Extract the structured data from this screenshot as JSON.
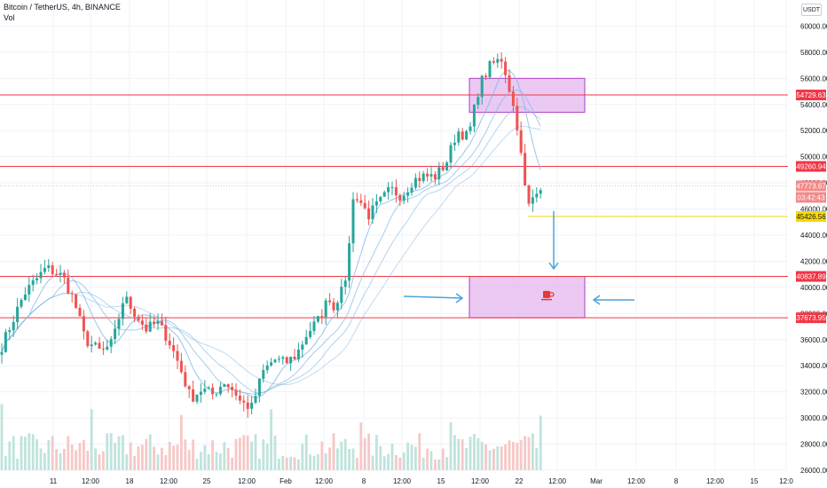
{
  "header": {
    "title": "Bitcoin / TetherUS, 4h, BINANCE",
    "volume_label": "Vol",
    "currency": "USDT"
  },
  "colors": {
    "up": "#26a69a",
    "down": "#ef5350",
    "ma": "#7fb8e6",
    "level_line": "#f23645",
    "current_price": "#f28a8a",
    "yellow_line": "#f5d90a",
    "zone_fill": "#e4b7ef",
    "zone_border": "#ad3ec3",
    "arrow": "#4aa3df",
    "volume_up": "#bfe3dd",
    "volume_down": "#f6c8c6"
  },
  "chart_data": {
    "type": "candlestick",
    "ylim": [
      26000,
      62000
    ],
    "y_ticks": [
      60000,
      58000,
      56000,
      54000,
      52000,
      50000,
      48000,
      46000,
      44000,
      42000,
      40000,
      38000,
      36000,
      34000,
      32000,
      30000,
      28000,
      26000
    ],
    "y_tick_labels": [
      "60000.00",
      "58000.00",
      "56000.00",
      "54000.00",
      "52000.00",
      "50000.00",
      "48000.00",
      "46000.00",
      "44000.00",
      "42000.00",
      "40000.00",
      "38000.00",
      "36000.00",
      "34000.00",
      "32000.00",
      "30000.00",
      "28000.00",
      "26000.00"
    ],
    "x_tick_labels": [
      "11",
      "12:00",
      "18",
      "12:00",
      "25",
      "12:00",
      "Feb",
      "12:00",
      "8",
      "12:00",
      "15",
      "12:00",
      "22",
      "12:00",
      "Mar",
      "12:00",
      "8",
      "12:00",
      "15",
      "12:0"
    ],
    "price_path": [
      [
        0,
        35500
      ],
      [
        4,
        39500
      ],
      [
        8,
        41500
      ],
      [
        11,
        40800
      ],
      [
        13,
        39000
      ],
      [
        15,
        36000
      ],
      [
        18,
        35000
      ],
      [
        20,
        35800
      ],
      [
        22,
        39300
      ],
      [
        24,
        38000
      ],
      [
        26,
        36800
      ],
      [
        28,
        37300
      ],
      [
        30,
        36000
      ],
      [
        32,
        34000
      ],
      [
        34,
        31500
      ],
      [
        36,
        32200
      ],
      [
        38,
        31800
      ],
      [
        40,
        32800
      ],
      [
        42,
        32000
      ],
      [
        43,
        31200
      ],
      [
        45,
        30800
      ],
      [
        47,
        33500
      ],
      [
        49,
        34500
      ],
      [
        51,
        34200
      ],
      [
        53,
        34800
      ],
      [
        55,
        36500
      ],
      [
        57,
        37500
      ],
      [
        59,
        39300
      ],
      [
        60,
        38000
      ],
      [
        61,
        40500
      ],
      [
        62,
        40000
      ],
      [
        63,
        46500
      ],
      [
        64,
        47000
      ],
      [
        66,
        45500
      ],
      [
        68,
        46500
      ],
      [
        70,
        47500
      ],
      [
        72,
        47000
      ],
      [
        74,
        48200
      ],
      [
        76,
        48500
      ],
      [
        78,
        48500
      ],
      [
        80,
        49500
      ],
      [
        82,
        52000
      ],
      [
        84,
        51500
      ],
      [
        86,
        55500
      ],
      [
        88,
        57000
      ],
      [
        90,
        57500
      ],
      [
        91,
        56000
      ],
      [
        93,
        52000
      ],
      [
        94,
        48000
      ],
      [
        95,
        46000
      ],
      [
        96,
        47500
      ],
      [
        97,
        47800
      ]
    ],
    "horizontal_levels": [
      {
        "price": 54729.63,
        "label": "54729.63"
      },
      {
        "price": 49260.94,
        "label": "49260.94"
      },
      {
        "price": 40837.89,
        "label": "40837.89"
      },
      {
        "price": 37673.95,
        "label": "37673.95"
      }
    ],
    "current_price": {
      "price": 47773.67,
      "label": "47773.67",
      "countdown": "03:42:43"
    },
    "yellow_level": {
      "price": 45426.56,
      "label": "45426.56"
    },
    "zones": [
      {
        "name": "upper-zone",
        "price_top": 56000,
        "price_bottom": 53400
      },
      {
        "name": "lower-zone",
        "price_top": 40837.89,
        "price_bottom": 37673.95
      }
    ],
    "zone_icon": "coffee-cup-icon",
    "annotations": [
      "arrow-down",
      "arrow-right",
      "arrow-left"
    ]
  }
}
